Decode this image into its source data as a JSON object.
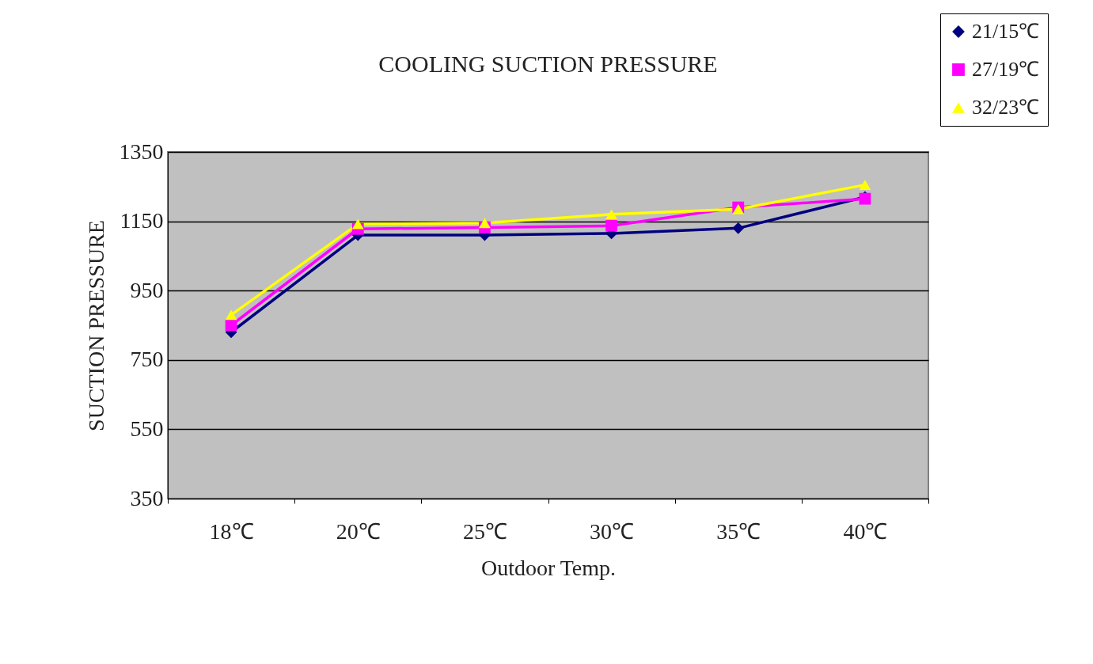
{
  "chart_data": {
    "type": "line",
    "title": "COOLING SUCTION PRESSURE",
    "xlabel": "Outdoor Temp.",
    "ylabel": "SUCTION PRESSURE",
    "categories": [
      "18℃",
      "20℃",
      "25℃",
      "30℃",
      "35℃",
      "40℃"
    ],
    "ylim": [
      350,
      1350
    ],
    "yticks": [
      350,
      550,
      750,
      950,
      1150,
      1350
    ],
    "grid": "y",
    "legend": "top right",
    "series": [
      {
        "name": "21/15℃",
        "color": "#000080",
        "marker": "diamond",
        "values": [
          830,
          1110,
          1110,
          1115,
          1130,
          1220
        ]
      },
      {
        "name": "27/19℃",
        "color": "#ff00ff",
        "marker": "square",
        "values": [
          850,
          1128,
          1132,
          1137,
          1190,
          1215
        ]
      },
      {
        "name": "32/23℃",
        "color": "#ffff00",
        "marker": "triangle",
        "values": [
          880,
          1142,
          1145,
          1170,
          1185,
          1255
        ]
      }
    ]
  }
}
